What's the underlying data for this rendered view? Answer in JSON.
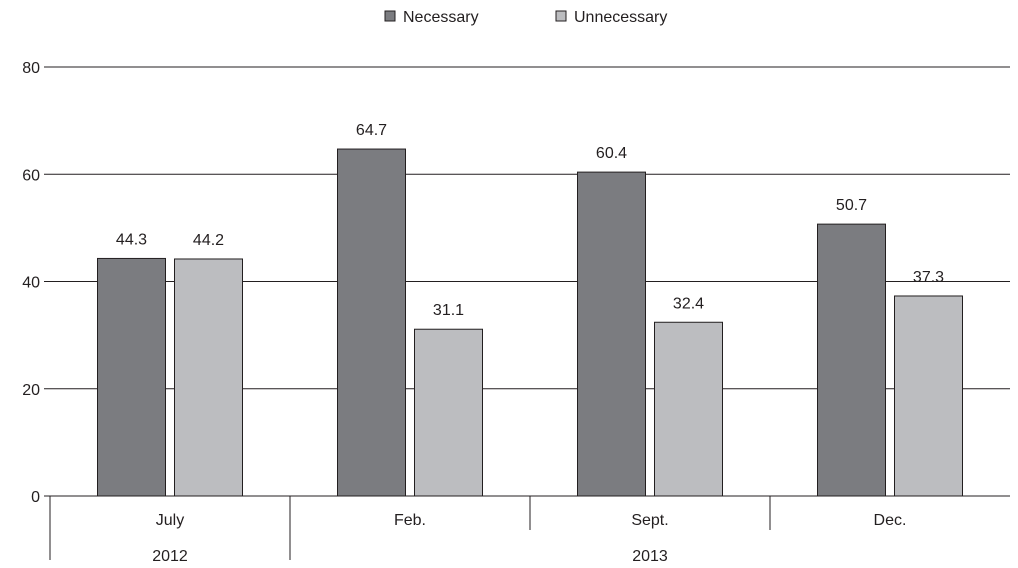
{
  "chart_data": {
    "type": "bar",
    "categories": [
      "July",
      "Feb.",
      "Sept.",
      "Dec."
    ],
    "groups": [
      {
        "label": "2012",
        "categories": [
          "July"
        ]
      },
      {
        "label": "2013",
        "categories": [
          "Feb.",
          "Sept.",
          "Dec."
        ]
      }
    ],
    "series": [
      {
        "name": "Necessary",
        "values": [
          44.3,
          64.7,
          60.4,
          50.7
        ],
        "color": "#7b7c80"
      },
      {
        "name": "Unnecessary",
        "values": [
          44.2,
          31.1,
          32.4,
          37.3
        ],
        "color": "#bcbdc0"
      }
    ],
    "y_ticks": [
      "0",
      "20",
      "40",
      "60",
      "80"
    ],
    "ylim": [
      0,
      80
    ],
    "grid": true,
    "legend_position": "top-center",
    "title": "",
    "xlabel": "",
    "ylabel": ""
  }
}
